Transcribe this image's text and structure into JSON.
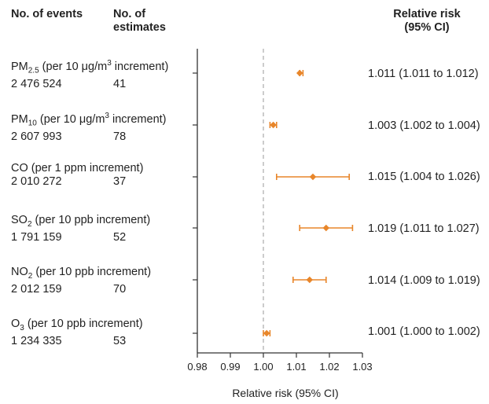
{
  "headers": {
    "events": "No. of events",
    "estimates_line1": "No. of",
    "estimates_line2": "estimates",
    "rr_line1": "Relative risk",
    "rr_line2": "(95% CI)"
  },
  "chart_data": {
    "type": "forest",
    "xlabel": "Relative risk (95% CI)",
    "xlim": [
      0.98,
      1.03
    ],
    "xticks": [
      "0.98",
      "0.99",
      "1.00",
      "1.01",
      "1.02",
      "1.03"
    ],
    "reference_line": 1.0,
    "marker_color": "#e8862a",
    "rows": [
      {
        "pollutant": "PM",
        "sub": "2.5",
        "sup": "",
        "unit_pre": " (per 10 μg/m",
        "unit_sup": "3",
        "unit_post": " increment)",
        "events": "2 476 524",
        "estimates": "41",
        "rr": 1.011,
        "lo": 1.011,
        "hi": 1.012,
        "rr_text": "1.011 (1.011 to 1.012)"
      },
      {
        "pollutant": "PM",
        "sub": "10",
        "sup": "",
        "unit_pre": " (per 10 μg/m",
        "unit_sup": "3",
        "unit_post": " increment)",
        "events": "2 607 993",
        "estimates": "78",
        "rr": 1.003,
        "lo": 1.002,
        "hi": 1.004,
        "rr_text": "1.003 (1.002 to 1.004)"
      },
      {
        "pollutant": "CO",
        "sub": "",
        "sup": "",
        "unit_pre": " (per 1 ppm increment)",
        "unit_sup": "",
        "unit_post": "",
        "events": "2 010 272",
        "estimates": "37",
        "rr": 1.015,
        "lo": 1.004,
        "hi": 1.026,
        "rr_text": "1.015 (1.004 to 1.026)"
      },
      {
        "pollutant": "SO",
        "sub": "2",
        "sup": "",
        "unit_pre": " (per 10 ppb increment)",
        "unit_sup": "",
        "unit_post": "",
        "events": "1 791 159",
        "estimates": "52",
        "rr": 1.019,
        "lo": 1.011,
        "hi": 1.027,
        "rr_text": "1.019 (1.011 to 1.027)"
      },
      {
        "pollutant": "NO",
        "sub": "2",
        "sup": "",
        "unit_pre": " (per 10 ppb increment)",
        "unit_sup": "",
        "unit_post": "",
        "events": "2 012 159",
        "estimates": "70",
        "rr": 1.014,
        "lo": 1.009,
        "hi": 1.019,
        "rr_text": "1.014 (1.009 to 1.019)"
      },
      {
        "pollutant": "O",
        "sub": "3",
        "sup": "",
        "unit_pre": " (per 10 ppb increment)",
        "unit_sup": "",
        "unit_post": "",
        "events": "1 234 335",
        "estimates": "53",
        "rr": 1.001,
        "lo": 1.0,
        "hi": 1.002,
        "rr_text": "1.001 (1.000 to 1.002)"
      }
    ]
  }
}
